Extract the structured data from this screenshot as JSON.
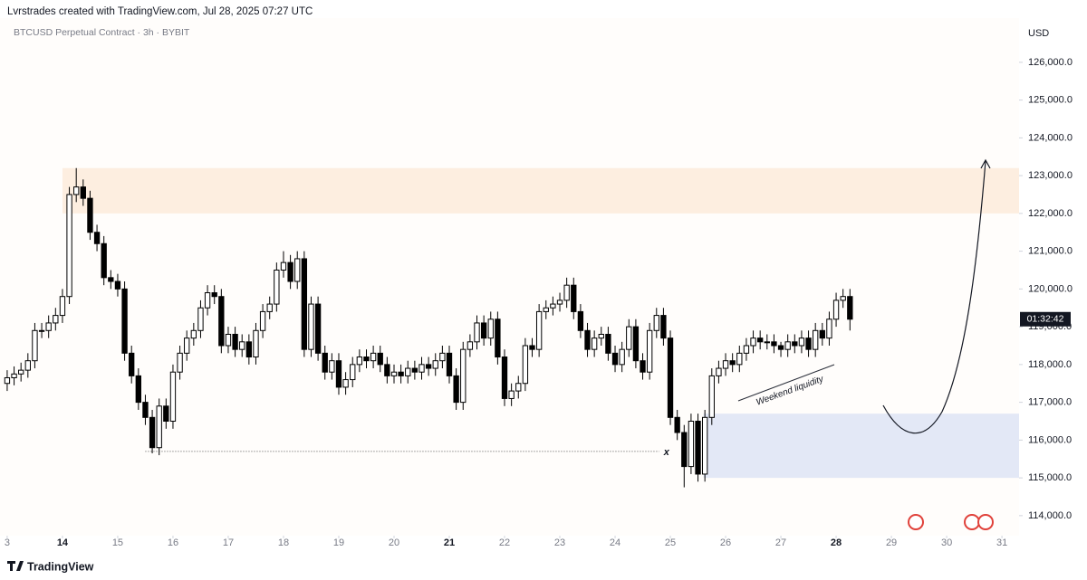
{
  "header": {
    "author_line": "Lvrstrades created with TradingView.com, Jul 28, 2025 07:27 UTC",
    "symbol_line": "BTCUSD Perpetual Contract · 3h · BYBIT",
    "currency": "USD",
    "brand": "TradingView"
  },
  "chart_data": {
    "type": "candlestick",
    "up_color": "#ffffff",
    "down_color": "#000000",
    "outline_color": "#000000",
    "xlim": [
      12.87,
      31.31
    ],
    "ylim": [
      113470,
      127170
    ],
    "xticks": [
      {
        "value": 13,
        "label": "3"
      },
      14,
      15,
      16,
      17,
      18,
      19,
      20,
      21,
      22,
      23,
      24,
      25,
      26,
      27,
      28,
      29,
      30,
      31
    ],
    "emphasized_xticks": [
      14,
      21,
      28
    ],
    "yticks": [
      {
        "value": 114000,
        "label": "114,000.0"
      },
      {
        "value": 115000,
        "label": "115,000.0"
      },
      {
        "value": 116000,
        "label": "116,000.0"
      },
      {
        "value": 117000,
        "label": "117,000.0"
      },
      {
        "value": 118000,
        "label": "118,000.0"
      },
      {
        "value": 119000,
        "label": "119,000.0"
      },
      {
        "value": 120000,
        "label": "120,000.0"
      },
      {
        "value": 121000,
        "label": "121,000.0"
      },
      {
        "value": 122000,
        "label": "122,000.0"
      },
      {
        "value": 123000,
        "label": "123,000.0"
      },
      {
        "value": 124000,
        "label": "124,000.0"
      },
      {
        "value": 125000,
        "label": "125,000.0"
      },
      {
        "value": 126000,
        "label": "126,000.0"
      }
    ],
    "x": [
      13,
      13.125,
      13.25,
      13.375,
      13.5,
      13.625,
      13.75,
      13.875,
      14,
      14.125,
      14.25,
      14.375,
      14.5,
      14.625,
      14.75,
      14.875,
      15,
      15.125,
      15.25,
      15.375,
      15.5,
      15.625,
      15.75,
      15.875,
      16,
      16.125,
      16.25,
      16.375,
      16.5,
      16.625,
      16.75,
      16.875,
      17,
      17.125,
      17.25,
      17.375,
      17.5,
      17.625,
      17.75,
      17.875,
      18,
      18.125,
      18.25,
      18.375,
      18.5,
      18.625,
      18.75,
      18.875,
      19,
      19.125,
      19.25,
      19.375,
      19.5,
      19.625,
      19.75,
      19.875,
      20,
      20.125,
      20.25,
      20.375,
      20.5,
      20.625,
      20.75,
      20.875,
      21,
      21.125,
      21.25,
      21.375,
      21.5,
      21.625,
      21.75,
      21.875,
      22,
      22.125,
      22.25,
      22.375,
      22.5,
      22.625,
      22.75,
      22.875,
      23,
      23.125,
      23.25,
      23.375,
      23.5,
      23.625,
      23.75,
      23.875,
      24,
      24.125,
      24.25,
      24.375,
      24.5,
      24.625,
      24.75,
      24.875,
      25,
      25.125,
      25.25,
      25.375,
      25.5,
      25.625,
      25.75,
      25.875,
      26,
      26.125,
      26.25,
      26.375,
      26.5,
      26.625,
      26.75,
      26.875,
      27,
      27.125,
      27.25,
      27.375,
      27.5,
      27.625,
      27.75,
      27.875,
      28,
      28.125,
      28.25
    ],
    "open": [
      117500,
      117650,
      117750,
      117850,
      118100,
      118900,
      118900,
      119100,
      119300,
      119800,
      122500,
      122700,
      122400,
      121500,
      121200,
      120300,
      120200,
      120000,
      118300,
      117700,
      117000,
      116600,
      115800,
      116900,
      116500,
      117800,
      118300,
      118700,
      118900,
      119500,
      119900,
      119800,
      118500,
      118800,
      118400,
      118600,
      118200,
      118900,
      119400,
      119600,
      120500,
      120700,
      120200,
      120800,
      118400,
      119600,
      118300,
      117800,
      118100,
      117400,
      117600,
      118000,
      118200,
      118100,
      118300,
      118000,
      117700,
      117800,
      117700,
      117900,
      117800,
      118000,
      117900,
      118100,
      118300,
      117700,
      117000,
      118400,
      118600,
      119100,
      118700,
      119200,
      118200,
      117100,
      117300,
      117500,
      118500,
      118400,
      119400,
      119500,
      119600,
      119700,
      120100,
      119400,
      118900,
      118400,
      118700,
      118800,
      118300,
      118000,
      118400,
      119000,
      118100,
      117800,
      118900,
      119300,
      118700,
      116600,
      116200,
      115300,
      116500,
      115100,
      116600,
      117700,
      117900,
      118100,
      118000,
      118300,
      118500,
      118700,
      118600,
      118600,
      118500,
      118400,
      118600,
      118500,
      118700,
      118400,
      118900,
      118700,
      119200,
      119700,
      119800
    ],
    "high": [
      117850,
      117950,
      118050,
      118300,
      119100,
      119100,
      119300,
      119500,
      120000,
      122700,
      123200,
      122900,
      122600,
      121700,
      121400,
      120500,
      120400,
      120200,
      118500,
      117900,
      117200,
      116800,
      117100,
      117100,
      118000,
      118500,
      118900,
      119100,
      119700,
      120100,
      120100,
      120000,
      119000,
      119000,
      118800,
      118800,
      119100,
      119600,
      119800,
      120700,
      121000,
      120900,
      121000,
      121000,
      119800,
      119800,
      118500,
      118300,
      118300,
      117800,
      118200,
      118400,
      118400,
      118500,
      118500,
      118200,
      118000,
      118000,
      118100,
      118100,
      118200,
      118200,
      118300,
      118500,
      118500,
      117900,
      118600,
      118800,
      119300,
      119300,
      119400,
      119400,
      118400,
      117500,
      117700,
      118700,
      118700,
      119600,
      119700,
      119800,
      119900,
      120300,
      120300,
      119600,
      119100,
      118900,
      119000,
      119000,
      118500,
      118600,
      119200,
      119200,
      118300,
      119100,
      119500,
      119500,
      118900,
      116800,
      116400,
      116700,
      116700,
      116800,
      117900,
      118100,
      118300,
      118300,
      118500,
      118700,
      118900,
      118900,
      118800,
      118800,
      118600,
      118800,
      118800,
      118900,
      118900,
      119100,
      119100,
      119400,
      119900,
      120000,
      120000
    ],
    "low": [
      117300,
      117450,
      117550,
      117650,
      117900,
      118700,
      118700,
      118900,
      119100,
      119600,
      122300,
      122200,
      121300,
      121000,
      120100,
      120000,
      119800,
      118100,
      117500,
      116800,
      116400,
      115650,
      115600,
      116300,
      116300,
      117600,
      118100,
      118500,
      118700,
      119300,
      119600,
      118300,
      118300,
      118200,
      118200,
      118000,
      118000,
      118700,
      119200,
      119400,
      120300,
      120000,
      120000,
      118200,
      118200,
      118100,
      117600,
      117600,
      117200,
      117200,
      117400,
      117800,
      117900,
      117900,
      117800,
      117500,
      117500,
      117500,
      117500,
      117600,
      117600,
      117700,
      117700,
      117900,
      117500,
      116800,
      116800,
      118200,
      118400,
      118500,
      118500,
      118000,
      116900,
      116900,
      117100,
      117300,
      118200,
      118200,
      119200,
      119300,
      119400,
      119500,
      119200,
      118700,
      118200,
      118200,
      118500,
      118100,
      117800,
      117800,
      118200,
      117900,
      117600,
      117600,
      118700,
      118500,
      116400,
      116000,
      114750,
      115100,
      114900,
      114900,
      116400,
      117500,
      117700,
      117800,
      117800,
      118100,
      118300,
      118400,
      118400,
      118300,
      118200,
      118200,
      118300,
      118300,
      118200,
      118200,
      118500,
      118500,
      119000,
      119500,
      118900
    ],
    "close": [
      117650,
      117750,
      117850,
      118100,
      118900,
      118900,
      119100,
      119300,
      119800,
      122500,
      122700,
      122400,
      121500,
      121200,
      120300,
      120200,
      120000,
      118300,
      117700,
      117000,
      116600,
      115800,
      116900,
      116500,
      117800,
      118300,
      118700,
      118900,
      119500,
      119900,
      119800,
      118500,
      118800,
      118400,
      118600,
      118200,
      118900,
      119400,
      119600,
      120500,
      120700,
      120200,
      120800,
      118400,
      119600,
      118300,
      117800,
      118100,
      117400,
      117600,
      118000,
      118200,
      118100,
      118300,
      118000,
      117700,
      117800,
      117700,
      117900,
      117800,
      118000,
      117900,
      118100,
      118300,
      117700,
      117000,
      118400,
      118600,
      119100,
      118700,
      119200,
      118200,
      117100,
      117300,
      117500,
      118500,
      118400,
      119400,
      119500,
      119600,
      119700,
      120100,
      119400,
      118900,
      118400,
      118700,
      118800,
      118300,
      118000,
      118400,
      119000,
      118100,
      117800,
      118900,
      119300,
      118700,
      116600,
      116200,
      115300,
      116500,
      115100,
      116600,
      117700,
      117900,
      118100,
      118000,
      118300,
      118500,
      118700,
      118600,
      118600,
      118500,
      118400,
      118600,
      118500,
      118700,
      118400,
      118900,
      118700,
      119200,
      119700,
      119800,
      119200
    ],
    "zones": [
      {
        "x_start": 14,
        "low": 122000,
        "high": 123200,
        "color": "#fdeee0"
      },
      {
        "x_start": 25.6,
        "low": 115000,
        "high": 116700,
        "color": "#e3e8f6"
      }
    ],
    "liquidity_line": {
      "value": 115700,
      "x_start": 15.5,
      "x_end": 24.8,
      "label": "x"
    },
    "annotation": "Weekend liquidity",
    "countdown_label": "01:32:42"
  }
}
